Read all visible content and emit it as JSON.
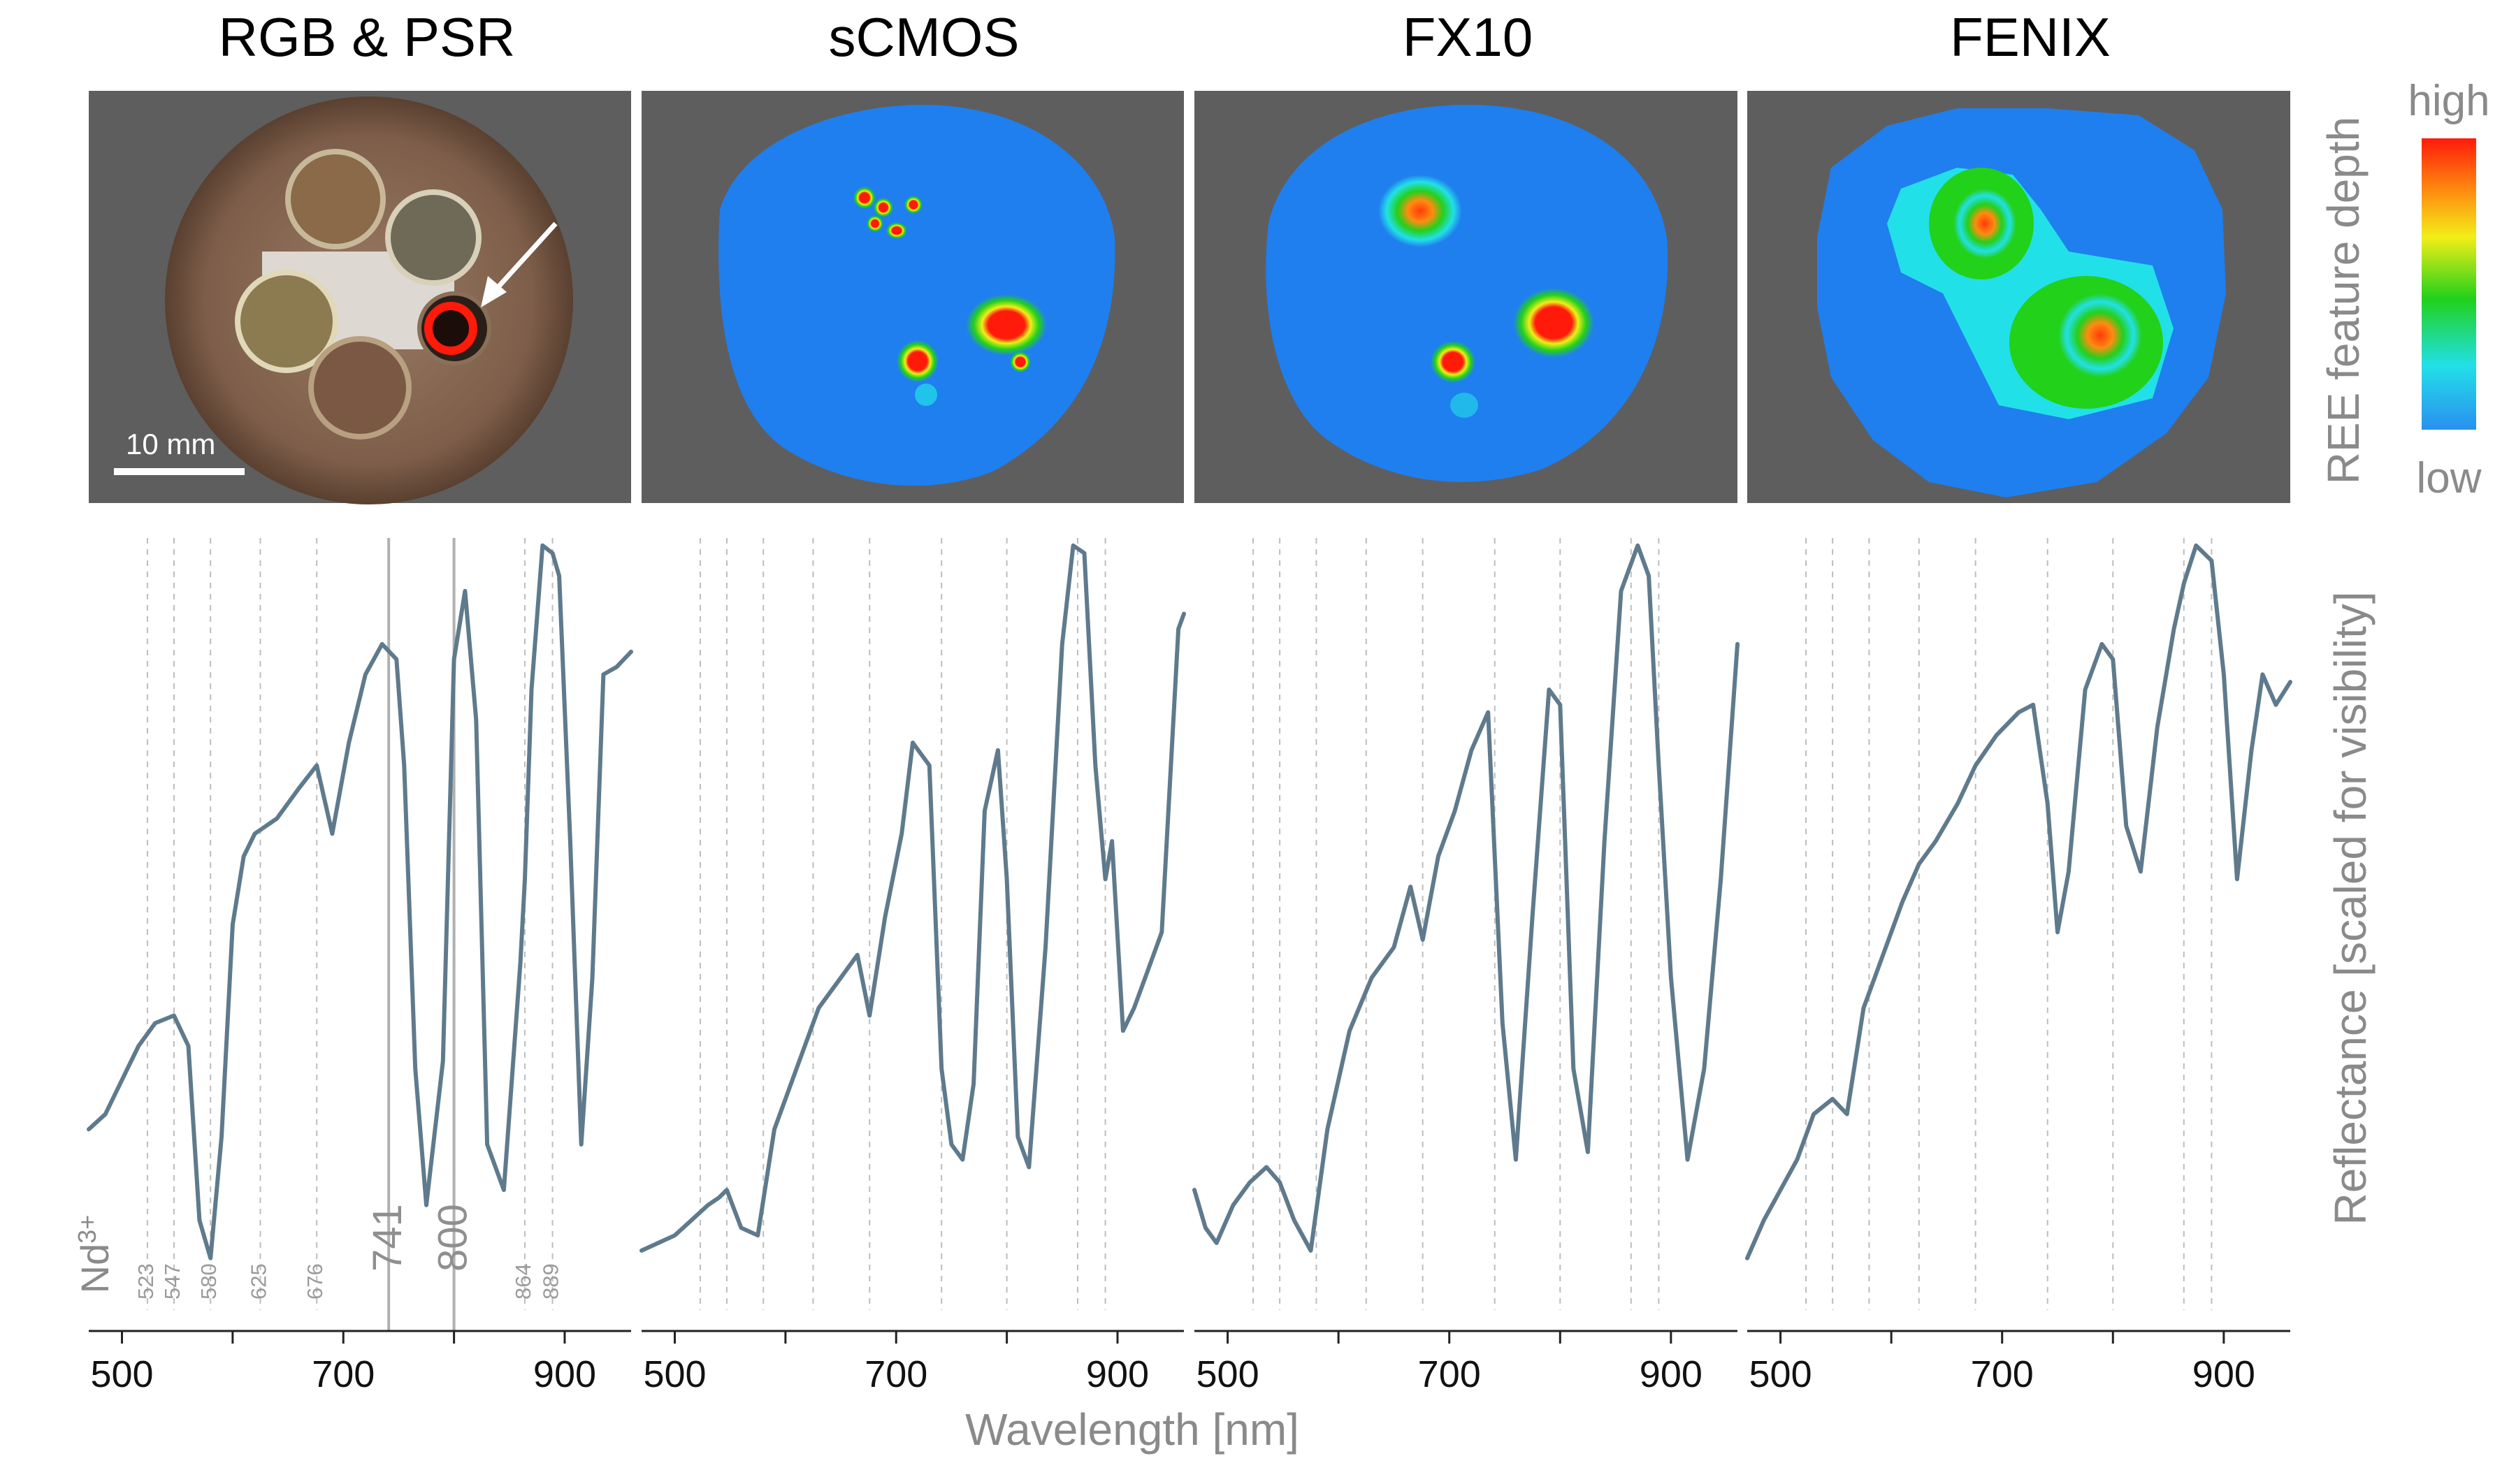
{
  "figure": {
    "titles": [
      "RGB & PSR",
      "sCMOS",
      "FX10",
      "FENIX"
    ],
    "colorbar": {
      "high": "high",
      "low": "low",
      "label": "REE feature depth",
      "colors": [
        "#2a8ff0",
        "#22e0e8",
        "#22d11a",
        "#f2ee18",
        "#ff8c10",
        "#ff1a0a"
      ]
    },
    "scalebar_label": "10 mm",
    "ion_label": "Nd",
    "ion_charge": "3+",
    "background_color": "#5e5e5e",
    "map_blue": "#1f7fee",
    "line_color": "#5f7a8c"
  },
  "chart_data": {
    "type": "line",
    "xlabel": "Wavelength [nm]",
    "ylabel": "Reflectance [scaled for visibility]",
    "xlim": [
      470,
      960
    ],
    "ylim": [
      0,
      1
    ],
    "xticks": [
      500,
      700,
      900
    ],
    "absorption_lines_nm": [
      523,
      547,
      580,
      625,
      676,
      741,
      800,
      864,
      889
    ],
    "absorption_labels": [
      "523",
      "547",
      "580",
      "625",
      "676",
      "741",
      "800",
      "864",
      "889"
    ],
    "series": [
      {
        "name": "RGB & PSR",
        "x": [
          470,
          485,
          495,
          505,
          515,
          530,
          547,
          560,
          570,
          580,
          590,
          600,
          610,
          620,
          640,
          660,
          676,
          690,
          705,
          720,
          735,
          748,
          755,
          765,
          775,
          790,
          800,
          810,
          820,
          830,
          845,
          860,
          864,
          870,
          880,
          889,
          895,
          905,
          915,
          925,
          935,
          947,
          960
        ],
        "y": [
          0.22,
          0.24,
          0.27,
          0.3,
          0.33,
          0.36,
          0.37,
          0.33,
          0.1,
          0.05,
          0.21,
          0.49,
          0.58,
          0.61,
          0.63,
          0.67,
          0.7,
          0.61,
          0.73,
          0.82,
          0.86,
          0.84,
          0.7,
          0.3,
          0.12,
          0.31,
          0.84,
          0.93,
          0.76,
          0.2,
          0.14,
          0.44,
          0.55,
          0.8,
          0.99,
          0.98,
          0.95,
          0.6,
          0.2,
          0.42,
          0.82,
          0.83,
          0.85
        ]
      },
      {
        "name": "sCMOS",
        "x": [
          470,
          485,
          500,
          515,
          530,
          540,
          547,
          560,
          575,
          590,
          610,
          630,
          650,
          665,
          676,
          690,
          705,
          715,
          730,
          741,
          750,
          760,
          770,
          780,
          792,
          800,
          810,
          820,
          835,
          850,
          860,
          870,
          880,
          889,
          895,
          905,
          915,
          925,
          940,
          955,
          960
        ],
        "y": [
          0.06,
          0.07,
          0.08,
          0.1,
          0.12,
          0.13,
          0.14,
          0.09,
          0.08,
          0.22,
          0.3,
          0.38,
          0.42,
          0.45,
          0.37,
          0.5,
          0.61,
          0.73,
          0.7,
          0.3,
          0.2,
          0.18,
          0.28,
          0.64,
          0.72,
          0.55,
          0.21,
          0.17,
          0.46,
          0.86,
          0.99,
          0.98,
          0.7,
          0.55,
          0.6,
          0.35,
          0.38,
          0.42,
          0.48,
          0.88,
          0.9
        ]
      },
      {
        "name": "FX10",
        "x": [
          470,
          480,
          490,
          505,
          520,
          535,
          547,
          560,
          575,
          590,
          610,
          630,
          650,
          665,
          676,
          690,
          705,
          720,
          735,
          748,
          760,
          775,
          790,
          800,
          812,
          825,
          840,
          855,
          870,
          880,
          889,
          900,
          915,
          930,
          945,
          960
        ],
        "y": [
          0.14,
          0.09,
          0.07,
          0.12,
          0.15,
          0.17,
          0.15,
          0.1,
          0.06,
          0.22,
          0.35,
          0.42,
          0.46,
          0.54,
          0.47,
          0.58,
          0.64,
          0.72,
          0.77,
          0.36,
          0.18,
          0.5,
          0.8,
          0.78,
          0.3,
          0.19,
          0.6,
          0.93,
          0.99,
          0.95,
          0.7,
          0.42,
          0.18,
          0.3,
          0.55,
          0.86
        ]
      },
      {
        "name": "FENIX",
        "x": [
          470,
          485,
          500,
          515,
          530,
          547,
          560,
          575,
          590,
          610,
          625,
          640,
          660,
          676,
          695,
          715,
          728,
          741,
          750,
          760,
          775,
          790,
          800,
          812,
          825,
          840,
          855,
          864,
          875,
          889,
          900,
          912,
          925,
          935,
          947,
          960
        ],
        "y": [
          0.05,
          0.1,
          0.14,
          0.18,
          0.24,
          0.26,
          0.24,
          0.38,
          0.44,
          0.52,
          0.57,
          0.6,
          0.65,
          0.7,
          0.74,
          0.77,
          0.78,
          0.65,
          0.48,
          0.56,
          0.8,
          0.86,
          0.84,
          0.62,
          0.56,
          0.75,
          0.88,
          0.94,
          0.99,
          0.97,
          0.82,
          0.55,
          0.72,
          0.82,
          0.78,
          0.81
        ]
      }
    ]
  }
}
